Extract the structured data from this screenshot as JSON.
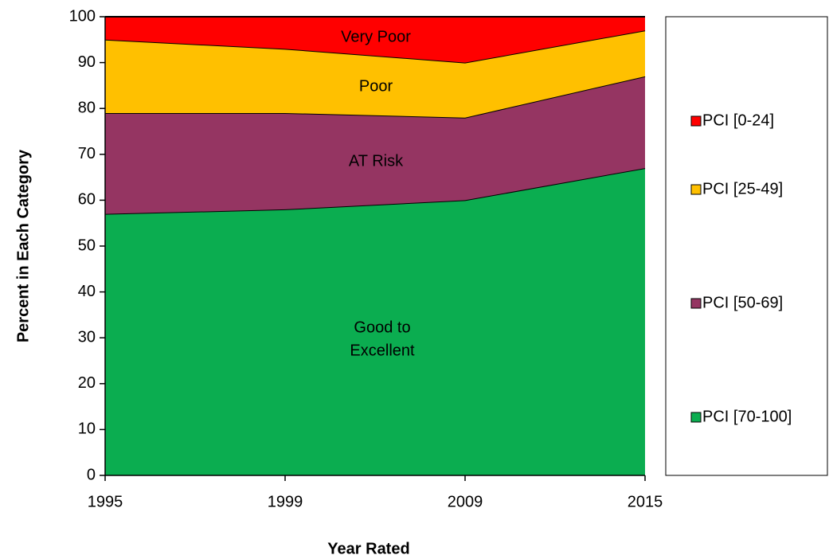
{
  "chart_data": {
    "type": "stacked_area",
    "x_label": "Year Rated",
    "y_label": "Percent in Each Category",
    "categories": [
      "1995",
      "1999",
      "2009",
      "2015"
    ],
    "series": [
      {
        "name": "PCI [70-100]",
        "color": "#0bad50",
        "values": [
          57,
          58,
          60,
          67
        ]
      },
      {
        "name": "PCI [50-69]",
        "color": "#953562",
        "values": [
          22,
          21,
          18,
          20
        ]
      },
      {
        "name": "PCI [25-49]",
        "color": "#ffc000",
        "values": [
          16,
          14,
          12,
          10
        ]
      },
      {
        "name": "PCI [0-24]",
        "color": "#ff0000",
        "values": [
          5,
          7,
          10,
          3
        ]
      }
    ],
    "annotations": [
      {
        "lines": [
          "Good to",
          "Excellent"
        ]
      },
      {
        "lines": [
          "AT Risk"
        ]
      },
      {
        "lines": [
          "Poor"
        ]
      },
      {
        "lines": [
          "Very Poor"
        ]
      }
    ],
    "ylim": [
      0,
      100
    ],
    "yticks": [
      0,
      10,
      20,
      30,
      40,
      50,
      60,
      70,
      80,
      90,
      100
    ],
    "legend": "right"
  }
}
